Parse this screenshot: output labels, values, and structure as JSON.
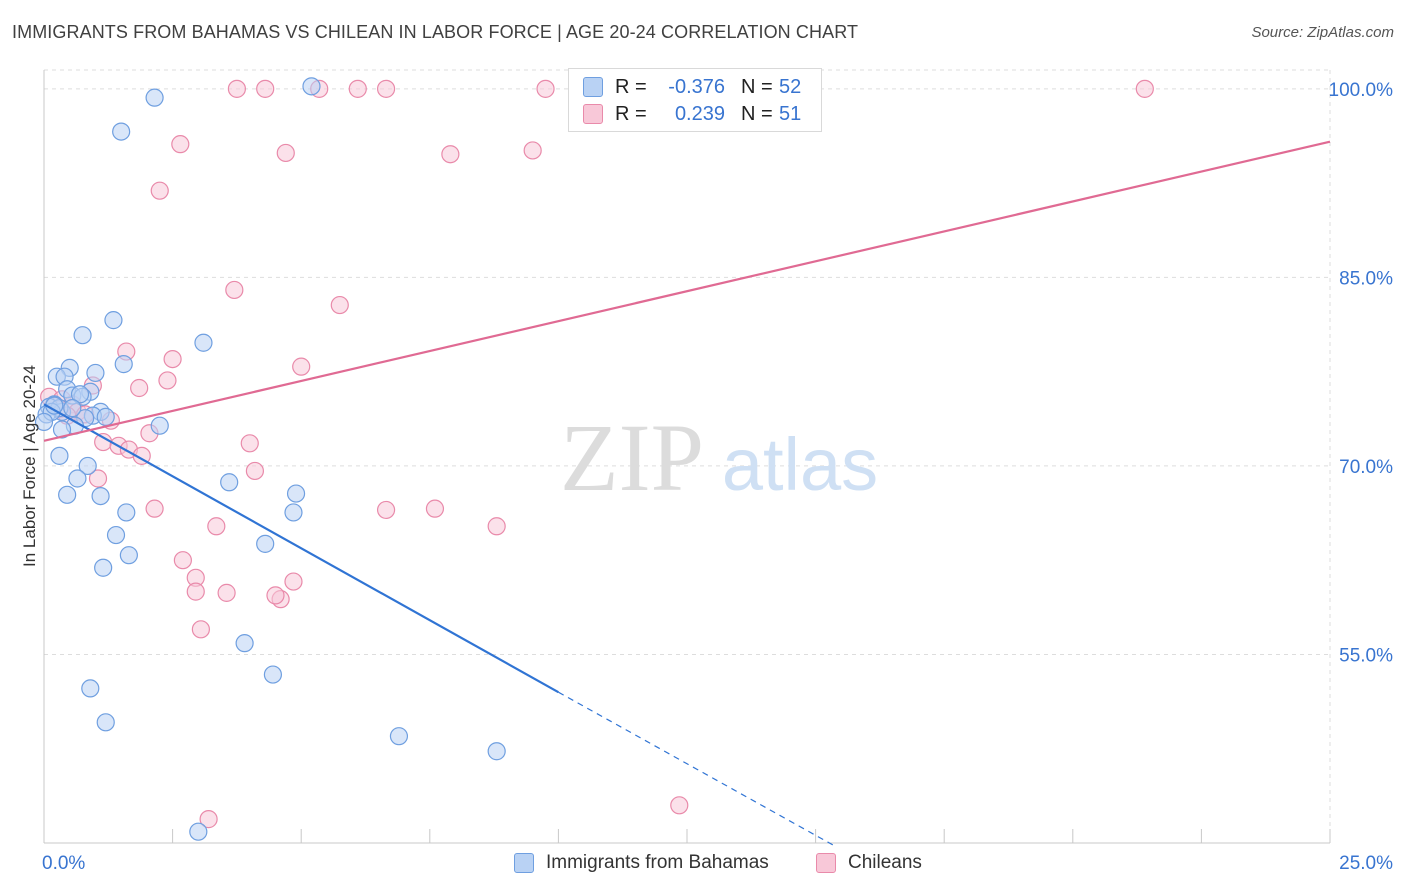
{
  "title": "IMMIGRANTS FROM BAHAMAS VS CHILEAN IN LABOR FORCE | AGE 20-24 CORRELATION CHART",
  "source": "Source: ZipAtlas.com",
  "watermark": {
    "zip": "ZIP",
    "atlas": "atlas"
  },
  "legend": {
    "rows": [
      {
        "r_label": "R =",
        "r_value": "-0.376",
        "n_label": "N =",
        "n_value": "52",
        "color": "#a9c8f0",
        "border": "#6f9fe0"
      },
      {
        "r_label": "R =",
        "r_value": "0.239",
        "n_label": "N =",
        "n_value": "51",
        "color": "#f7c0d2",
        "border": "#e98aaa"
      }
    ]
  },
  "bottom_legend": {
    "series1": "Immigrants from Bahamas",
    "series2": "Chileans"
  },
  "colors": {
    "blue": "#6f9fe0",
    "blue_fill": "#b9d2f4",
    "blue_line": "#3074d4",
    "pink": "#e98aaa",
    "pink_fill": "#f8c8d8",
    "pink_line": "#e06a93",
    "axis_text": "#3874d0",
    "grid": "#dddddd"
  },
  "chart_data": {
    "type": "scatter",
    "title": "IMMIGRANTS FROM BAHAMAS VS CHILEAN IN LABOR FORCE | AGE 20-24 CORRELATION CHART",
    "xlabel": "",
    "ylabel": "In Labor Force | Age 20-24",
    "xlim": [
      0,
      25
    ],
    "ylim": [
      40,
      101.5
    ],
    "x_tick_labels": [
      "0.0%",
      "25.0%"
    ],
    "y_ticks": [
      55,
      70,
      85,
      100
    ],
    "y_tick_labels": [
      "55.0%",
      "70.0%",
      "85.0%",
      "100.0%"
    ],
    "grid": true,
    "legend_position": "top-center",
    "series": [
      {
        "name": "Immigrants from Bahamas",
        "r": -0.376,
        "n": 52,
        "trend": {
          "x": [
            0,
            10
          ],
          "y": [
            74.9,
            52.0
          ],
          "dashed_to": [
            15.4,
            39.7
          ]
        },
        "points": [
          [
            2.15,
            99.3
          ],
          [
            1.5,
            96.6
          ],
          [
            5.2,
            100.2
          ],
          [
            1.35,
            81.6
          ],
          [
            0.75,
            80.4
          ],
          [
            3.1,
            79.8
          ],
          [
            1.55,
            78.1
          ],
          [
            0.5,
            77.8
          ],
          [
            1.0,
            77.4
          ],
          [
            0.25,
            77.1
          ],
          [
            0.4,
            77.1
          ],
          [
            0.45,
            76.1
          ],
          [
            0.9,
            75.9
          ],
          [
            0.55,
            75.6
          ],
          [
            0.75,
            75.5
          ],
          [
            0.7,
            75.7
          ],
          [
            0.2,
            74.9
          ],
          [
            0.1,
            74.7
          ],
          [
            0.35,
            74.3
          ],
          [
            0.3,
            74.6
          ],
          [
            0.05,
            74.1
          ],
          [
            0.15,
            74.3
          ],
          [
            1.1,
            74.3
          ],
          [
            0.95,
            74.0
          ],
          [
            1.2,
            73.9
          ],
          [
            0.8,
            73.8
          ],
          [
            0.6,
            73.2
          ],
          [
            2.25,
            73.2
          ],
          [
            0.35,
            72.9
          ],
          [
            0.0,
            73.5
          ],
          [
            0.3,
            70.8
          ],
          [
            0.85,
            70.0
          ],
          [
            0.65,
            69.0
          ],
          [
            3.6,
            68.7
          ],
          [
            4.9,
            67.8
          ],
          [
            0.45,
            67.7
          ],
          [
            1.1,
            67.6
          ],
          [
            1.6,
            66.3
          ],
          [
            4.85,
            66.3
          ],
          [
            1.4,
            64.5
          ],
          [
            4.3,
            63.8
          ],
          [
            1.65,
            62.9
          ],
          [
            1.15,
            61.9
          ],
          [
            3.9,
            55.9
          ],
          [
            4.45,
            53.4
          ],
          [
            0.9,
            52.3
          ],
          [
            1.2,
            49.6
          ],
          [
            6.9,
            48.5
          ],
          [
            8.8,
            47.3
          ],
          [
            3.0,
            40.9
          ],
          [
            0.2,
            74.8
          ],
          [
            0.55,
            74.6
          ]
        ]
      },
      {
        "name": "Chileans",
        "r": 0.239,
        "n": 51,
        "trend": {
          "x": [
            0,
            25
          ],
          "y": [
            72.0,
            95.8
          ]
        },
        "points": [
          [
            3.75,
            100.0
          ],
          [
            4.3,
            100.0
          ],
          [
            5.35,
            100.0
          ],
          [
            6.1,
            100.0
          ],
          [
            6.65,
            100.0
          ],
          [
            9.75,
            100.0
          ],
          [
            21.4,
            100.0
          ],
          [
            2.65,
            95.6
          ],
          [
            4.7,
            94.9
          ],
          [
            7.9,
            94.8
          ],
          [
            9.5,
            95.1
          ],
          [
            2.25,
            91.9
          ],
          [
            3.7,
            84.0
          ],
          [
            5.75,
            82.8
          ],
          [
            1.6,
            79.1
          ],
          [
            2.5,
            78.5
          ],
          [
            5.0,
            77.9
          ],
          [
            2.4,
            76.8
          ],
          [
            1.85,
            76.2
          ],
          [
            0.95,
            76.4
          ],
          [
            0.1,
            75.5
          ],
          [
            0.35,
            75.3
          ],
          [
            0.55,
            74.9
          ],
          [
            0.65,
            74.3
          ],
          [
            0.3,
            74.5
          ],
          [
            0.8,
            74.1
          ],
          [
            1.3,
            73.6
          ],
          [
            2.05,
            72.6
          ],
          [
            1.15,
            71.9
          ],
          [
            1.45,
            71.6
          ],
          [
            4.0,
            71.8
          ],
          [
            1.65,
            71.3
          ],
          [
            1.9,
            70.8
          ],
          [
            4.1,
            69.6
          ],
          [
            1.05,
            69.0
          ],
          [
            2.15,
            66.6
          ],
          [
            6.65,
            66.5
          ],
          [
            7.6,
            66.6
          ],
          [
            8.8,
            65.2
          ],
          [
            3.35,
            65.2
          ],
          [
            2.7,
            62.5
          ],
          [
            4.85,
            60.8
          ],
          [
            2.95,
            61.1
          ],
          [
            2.95,
            60.0
          ],
          [
            3.55,
            59.9
          ],
          [
            4.6,
            59.4
          ],
          [
            4.5,
            59.7
          ],
          [
            3.05,
            57.0
          ],
          [
            12.35,
            43.0
          ],
          [
            3.2,
            41.9
          ],
          [
            0.45,
            74.0
          ]
        ]
      }
    ]
  }
}
